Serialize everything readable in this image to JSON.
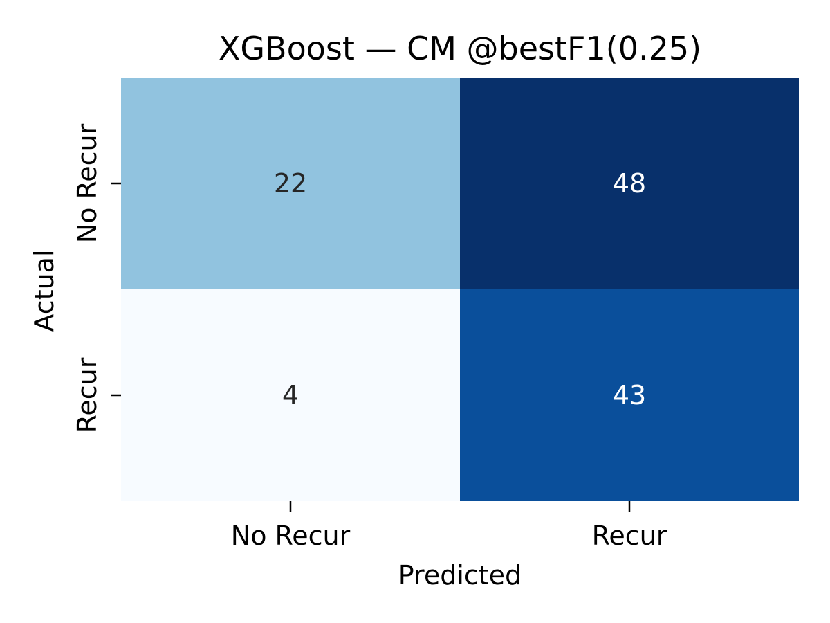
{
  "chart_data": {
    "type": "heatmap",
    "title": "XGBoost — CM @bestF1(0.25)",
    "xlabel": "Predicted",
    "ylabel": "Actual",
    "x_categories": [
      "No Recur",
      "Recur"
    ],
    "y_categories": [
      "No Recur",
      "Recur"
    ],
    "values": [
      [
        22,
        48
      ],
      [
        4,
        43
      ]
    ],
    "colormap": "Blues",
    "colorbar": false,
    "cell_colors": [
      [
        "#91c3df",
        "#08306b"
      ],
      [
        "#f7fbff",
        "#0a4f9b"
      ]
    ],
    "annotation_colors": [
      [
        "#262626",
        "#ffffff"
      ],
      [
        "#262626",
        "#ffffff"
      ]
    ]
  }
}
